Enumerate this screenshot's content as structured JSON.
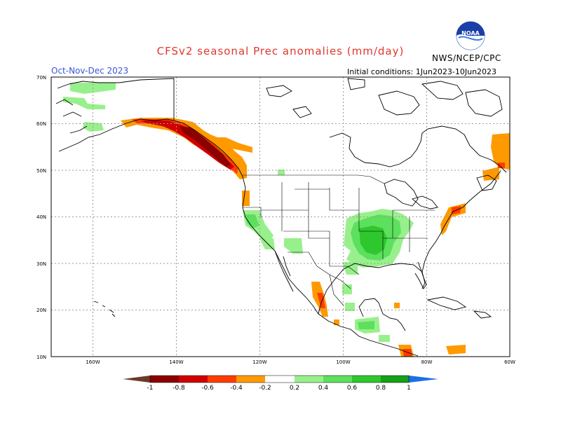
{
  "header": {
    "title": "CFSv2 seasonal Prec anomalies (mm/day)",
    "season": "Oct-Nov-Dec 2023",
    "initial_conditions": "Initial conditions: 1Jun2023-10Jun2023",
    "agency": "NWS/NCEP/CPC",
    "logo_text": "NOAA"
  },
  "map": {
    "lat_labels": [
      "70N",
      "60N",
      "50N",
      "40N",
      "30N",
      "20N",
      "10N"
    ],
    "lon_labels": [
      "160W",
      "140W",
      "120W",
      "100W",
      "80W",
      "60W"
    ],
    "lat_range": [
      10,
      70
    ],
    "lon_range": [
      -170,
      -60
    ]
  },
  "legend": {
    "labels": [
      "-1",
      "-0.8",
      "-0.6",
      "-0.4",
      "-0.2",
      "0.2",
      "0.4",
      "0.6",
      "0.8",
      "1"
    ],
    "colors": {
      "lt_-1": "#6b3a2a",
      "-1_-0.8": "#8b0000",
      "-0.8_-0.6": "#d00000",
      "-0.6_-0.4": "#ff3c00",
      "-0.4_-0.2": "#ff9900",
      "-0.2_0.2": "#ffffff",
      "0.2_0.4": "#98f08c",
      "0.4_0.6": "#5de05d",
      "0.6_0.8": "#2ec82e",
      "0.8_1": "#16a016",
      "gt_1": "#1e6ee6"
    }
  }
}
